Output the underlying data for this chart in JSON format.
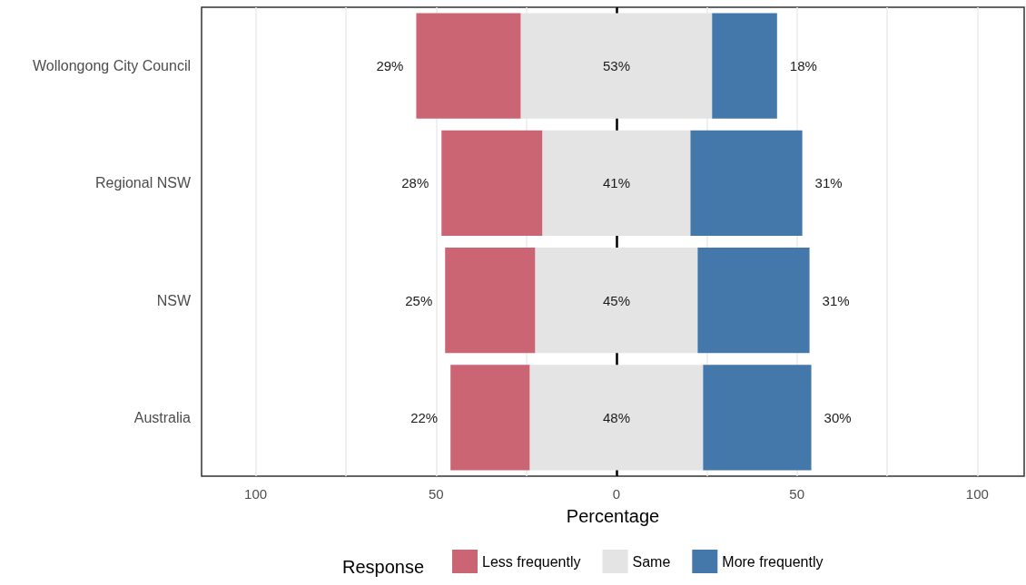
{
  "chart_data": {
    "type": "bar",
    "orientation": "horizontal",
    "xlabel": "Percentage",
    "legend_title": "Response",
    "legend": "bottom",
    "grid": "x",
    "categories": [
      "Wollongong City Council",
      "Regional NSW",
      "NSW",
      "Australia"
    ],
    "xlim": [
      -115,
      113
    ],
    "xticks": [
      {
        "value": -100,
        "label": "100"
      },
      {
        "value": -75,
        "label": null
      },
      {
        "value": -50,
        "label": "50"
      },
      {
        "value": -25,
        "label": null
      },
      0,
      {
        "value": 25,
        "label": null
      },
      50,
      {
        "value": 75,
        "label": null
      },
      100
    ],
    "ref_lines": [
      {
        "axis": "x",
        "value": 0,
        "label": null,
        "color": "#000000"
      }
    ],
    "series": [
      {
        "name": "Less frequently",
        "color": "#cb6574",
        "values": [
          29,
          28,
          25,
          22
        ],
        "base": [
          -55.5,
          -48.5,
          -47.5,
          -46
        ],
        "value_labels": [
          "29%",
          "28%",
          "25%",
          "22%"
        ]
      },
      {
        "name": "Same",
        "color": "#e4e4e4",
        "values": [
          53,
          41,
          45,
          48
        ],
        "base": [
          -26.5,
          -20.5,
          -22.5,
          -24
        ],
        "value_labels": [
          "53%",
          "41%",
          "45%",
          "48%"
        ]
      },
      {
        "name": "More frequently",
        "color": "#4477aa",
        "values": [
          18,
          31,
          31,
          30
        ],
        "base": [
          26.5,
          20.5,
          22.5,
          24
        ],
        "value_labels": [
          "18%",
          "31%",
          "31%",
          "30%"
        ]
      }
    ]
  }
}
